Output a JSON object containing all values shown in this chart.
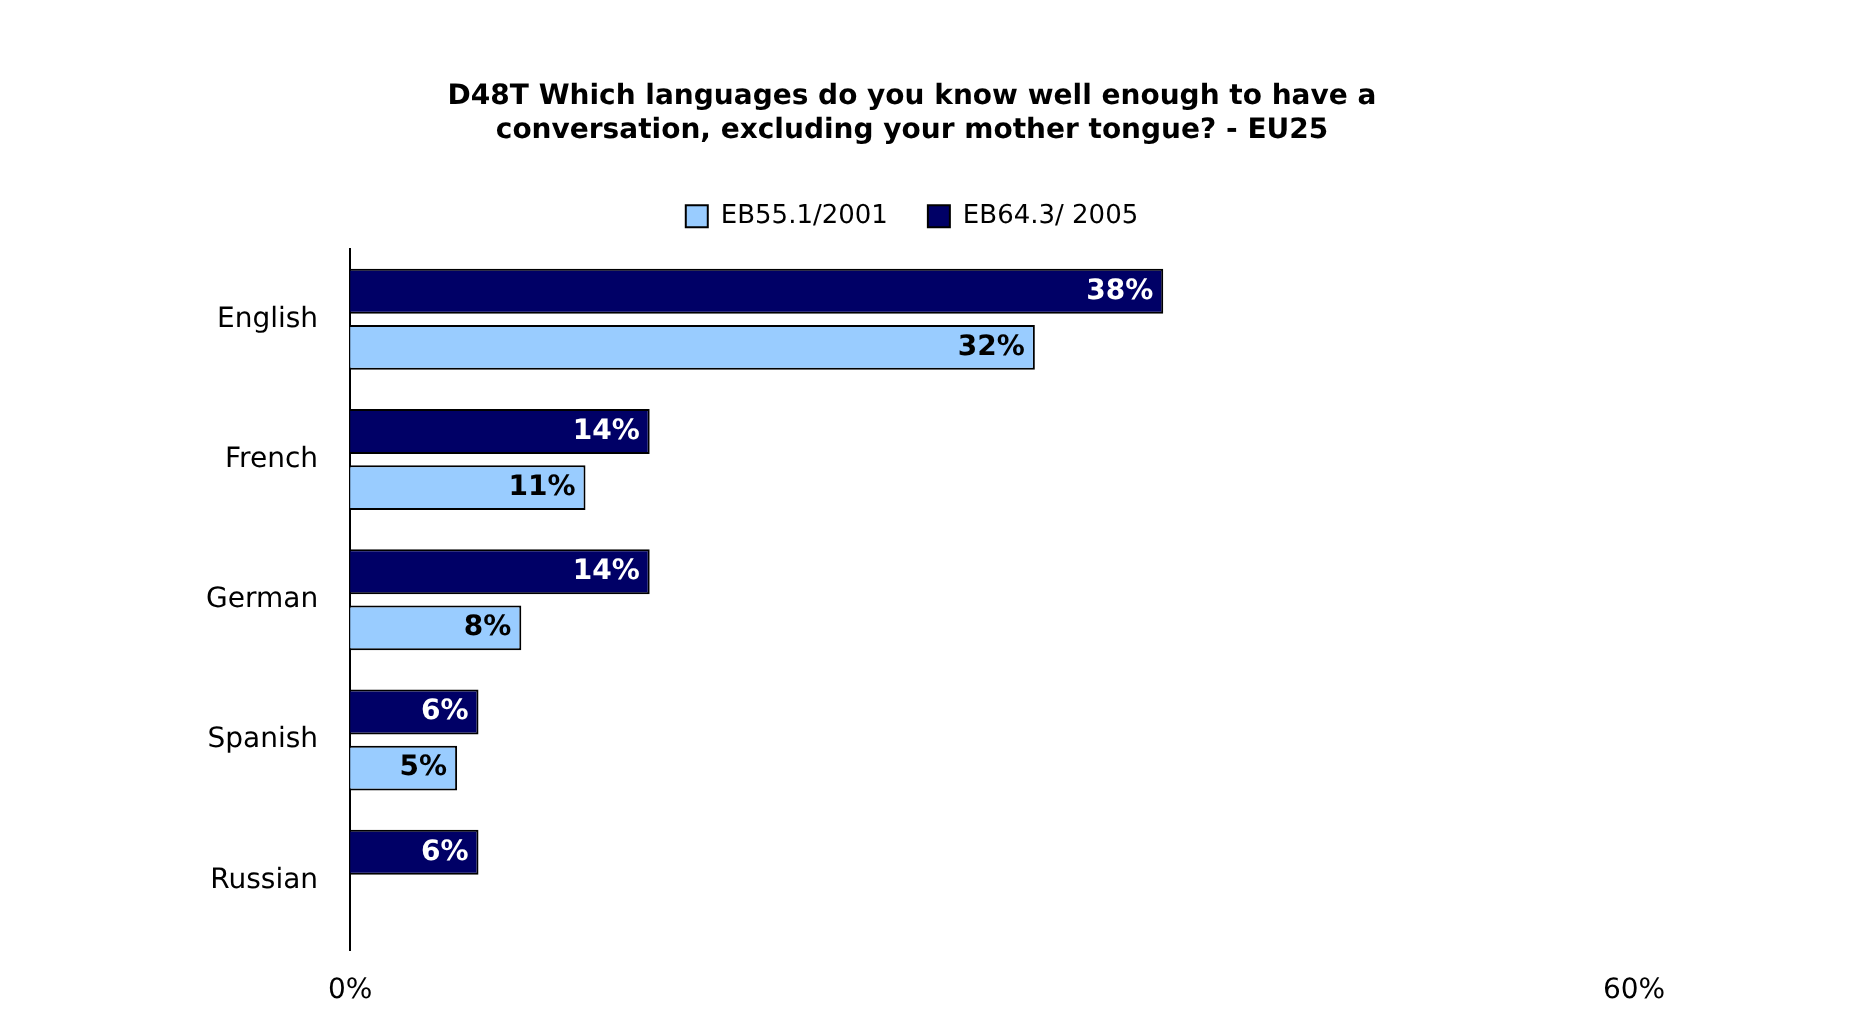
{
  "chart_data": {
    "type": "bar",
    "orientation": "horizontal",
    "title": "D48T Which languages do you know well enough to have a conversation, excluding your mother tongue? - EU25",
    "categories": [
      "English",
      "French",
      "German",
      "Spanish",
      "Russian"
    ],
    "series": [
      {
        "name": "EB55.1/2001",
        "color": "#99ccff",
        "values": [
          32,
          11,
          8,
          5,
          null
        ],
        "value_labels": [
          "32%",
          "11%",
          "8%",
          "5%",
          null
        ]
      },
      {
        "name": "EB64.3/ 2005",
        "color": "#000066",
        "values": [
          38,
          14,
          14,
          6,
          6
        ],
        "value_labels": [
          "38%",
          "14%",
          "14%",
          "6%",
          "6%"
        ]
      }
    ],
    "xlim": [
      0,
      60
    ],
    "xticks": [
      {
        "value": 0,
        "label": "0%"
      },
      {
        "value": 60,
        "label": "60%"
      }
    ],
    "grid": false,
    "legend": "top"
  }
}
